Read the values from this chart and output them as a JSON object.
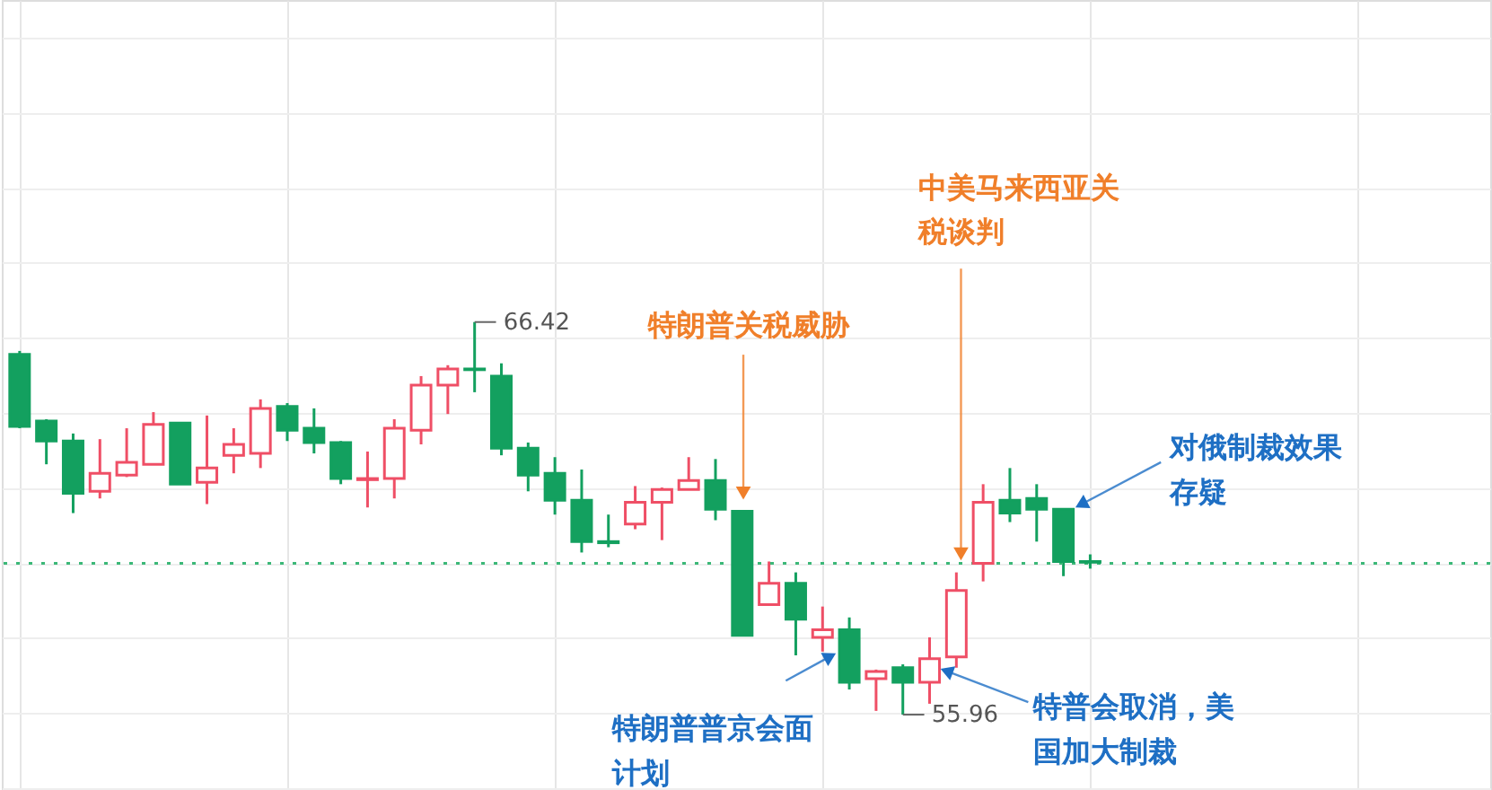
{
  "chart_data": {
    "type": "candlestick",
    "categories": [
      null,
      null,
      null,
      null,
      null,
      null,
      null,
      null,
      null,
      null,
      null,
      null,
      null,
      null,
      null,
      null,
      null,
      null,
      null,
      null,
      null,
      null,
      null,
      null,
      null,
      null,
      null,
      null,
      null,
      null,
      null,
      null,
      null,
      null,
      null,
      null,
      null,
      null,
      null,
      null,
      null
    ],
    "ohlc": [
      [
        65.56,
        65.65,
        63.59,
        63.64
      ],
      [
        63.78,
        63.83,
        62.63,
        63.25
      ],
      [
        63.25,
        63.45,
        61.33,
        61.86
      ],
      [
        61.91,
        63.3,
        61.72,
        62.39
      ],
      [
        62.34,
        63.59,
        62.29,
        62.68
      ],
      [
        62.63,
        64.02,
        62.63,
        63.69
      ],
      [
        63.73,
        63.73,
        62.1,
        62.1
      ],
      [
        62.15,
        63.93,
        61.57,
        62.53
      ],
      [
        62.87,
        63.59,
        62.39,
        63.16
      ],
      [
        62.92,
        64.36,
        62.53,
        64.12
      ],
      [
        64.17,
        64.26,
        63.25,
        63.54
      ],
      [
        63.59,
        64.12,
        62.92,
        63.21
      ],
      [
        63.21,
        63.25,
        62.1,
        62.25
      ],
      [
        62.22,
        62.97,
        61.48,
        62.25
      ],
      [
        62.25,
        63.83,
        61.72,
        63.59
      ],
      [
        63.54,
        64.98,
        63.16,
        64.74
      ],
      [
        64.74,
        65.27,
        63.97,
        65.17
      ],
      [
        65.17,
        66.42,
        64.55,
        65.15
      ],
      [
        64.98,
        65.32,
        62.87,
        63.06
      ],
      [
        63.06,
        63.21,
        61.91,
        62.34
      ],
      [
        62.39,
        62.82,
        61.29,
        61.67
      ],
      [
        61.67,
        62.49,
        60.28,
        60.57
      ],
      [
        60.57,
        61.29,
        60.42,
        60.54
      ],
      [
        61.04,
        62.05,
        60.9,
        61.62
      ],
      [
        61.62,
        62.01,
        60.61,
        61.96
      ],
      [
        61.96,
        62.82,
        61.96,
        62.2
      ],
      [
        62.2,
        62.77,
        61.14,
        61.43
      ],
      [
        61.38,
        61.38,
        58.07,
        58.07
      ],
      [
        58.89,
        60.04,
        58.89,
        59.46
      ],
      [
        59.46,
        59.75,
        57.54,
        58.5
      ],
      [
        58.02,
        58.84,
        57.64,
        58.22
      ],
      [
        58.22,
        58.55,
        56.63,
        56.82
      ],
      [
        56.92,
        57.16,
        56.06,
        57.11
      ],
      [
        57.21,
        57.3,
        55.96,
        56.82
      ],
      [
        56.82,
        58.02,
        56.25,
        57.45
      ],
      [
        57.5,
        59.75,
        57.21,
        59.27
      ],
      [
        59.99,
        62.1,
        59.51,
        61.62
      ],
      [
        61.67,
        62.53,
        61.09,
        61.33
      ],
      [
        61.72,
        62.1,
        60.57,
        61.43
      ],
      [
        61.43,
        61.43,
        59.65,
        60.04
      ],
      [
        60.04,
        60.23,
        59.85,
        60.02
      ]
    ],
    "colors": [
      "#13a05f",
      "#13a05f",
      "#13a05f",
      "#ef4f66",
      "#ef4f66",
      "#ef4f66",
      "#13a05f",
      "#ef4f66",
      "#ef4f66",
      "#ef4f66",
      "#13a05f",
      "#13a05f",
      "#13a05f",
      "#ef4f66",
      "#ef4f66",
      "#ef4f66",
      "#ef4f66",
      "#13a05f",
      "#13a05f",
      "#13a05f",
      "#13a05f",
      "#13a05f",
      "#13a05f",
      "#ef4f66",
      "#ef4f66",
      "#ef4f66",
      "#13a05f",
      "#13a05f",
      "#ef4f66",
      "#13a05f",
      "#ef4f66",
      "#13a05f",
      "#ef4f66",
      "#13a05f",
      "#ef4f66",
      "#ef4f66",
      "#ef4f66",
      "#13a05f",
      "#13a05f",
      "#13a05f",
      "#13a05f"
    ],
    "ylim": [
      54.0,
      75.0
    ],
    "grid": true,
    "tick_labels": false,
    "ref_lines": [
      {
        "axis": "y",
        "value": 59.99,
        "label": null,
        "color": "#3cb878",
        "line_style": "dotted"
      }
    ],
    "annotations": [
      "66.42",
      "55.96",
      "特朗普关税威胁",
      "中美马来西亚关税谈判",
      "对俄制裁效果存疑",
      "特朗普普京会面计划",
      "特普会取消，美国加大制裁"
    ]
  }
}
